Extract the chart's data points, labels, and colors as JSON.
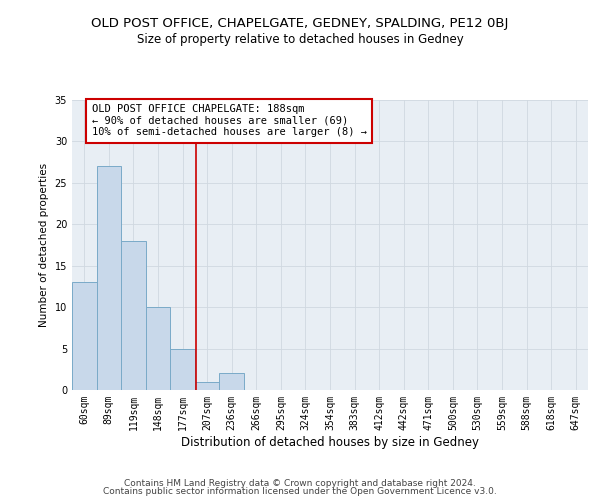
{
  "title": "OLD POST OFFICE, CHAPELGATE, GEDNEY, SPALDING, PE12 0BJ",
  "subtitle": "Size of property relative to detached houses in Gedney",
  "xlabel": "Distribution of detached houses by size in Gedney",
  "ylabel": "Number of detached properties",
  "bar_values": [
    13,
    27,
    18,
    10,
    5,
    1,
    2,
    0,
    0,
    0,
    0,
    0,
    0,
    0,
    0,
    0,
    0,
    0,
    0,
    0,
    0
  ],
  "categories": [
    "60sqm",
    "89sqm",
    "119sqm",
    "148sqm",
    "177sqm",
    "207sqm",
    "236sqm",
    "266sqm",
    "295sqm",
    "324sqm",
    "354sqm",
    "383sqm",
    "412sqm",
    "442sqm",
    "471sqm",
    "500sqm",
    "530sqm",
    "559sqm",
    "588sqm",
    "618sqm",
    "647sqm"
  ],
  "bar_color": "#c8d8ea",
  "bar_edge_color": "#7aaac8",
  "bar_width": 1.0,
  "ylim": [
    0,
    35
  ],
  "yticks": [
    0,
    5,
    10,
    15,
    20,
    25,
    30,
    35
  ],
  "red_line_x": 4.55,
  "annotation_text": "OLD POST OFFICE CHAPELGATE: 188sqm\n← 90% of detached houses are smaller (69)\n10% of semi-detached houses are larger (8) →",
  "annotation_box_color": "#ffffff",
  "annotation_border_color": "#cc0000",
  "grid_color": "#d0d8e0",
  "background_color": "#e8eef4",
  "footer_line1": "Contains HM Land Registry data © Crown copyright and database right 2024.",
  "footer_line2": "Contains public sector information licensed under the Open Government Licence v3.0.",
  "title_fontsize": 9.5,
  "subtitle_fontsize": 8.5,
  "xlabel_fontsize": 8.5,
  "ylabel_fontsize": 7.5,
  "tick_fontsize": 7,
  "annotation_fontsize": 7.5,
  "footer_fontsize": 6.5
}
